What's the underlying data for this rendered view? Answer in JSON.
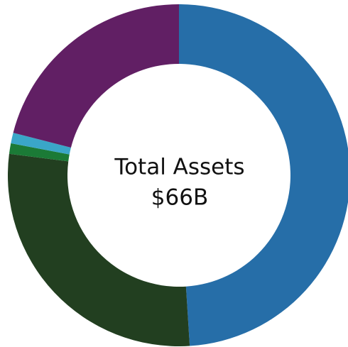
{
  "chart_data": {
    "type": "pie",
    "donut": true,
    "center_text": [
      "Total Assets",
      "$66B"
    ],
    "values": [
      49,
      28,
      1,
      1,
      21
    ],
    "colors": [
      "#266ea8",
      "#223f20",
      "#1b7a36",
      "#3aa6c8",
      "#611f64"
    ]
  }
}
